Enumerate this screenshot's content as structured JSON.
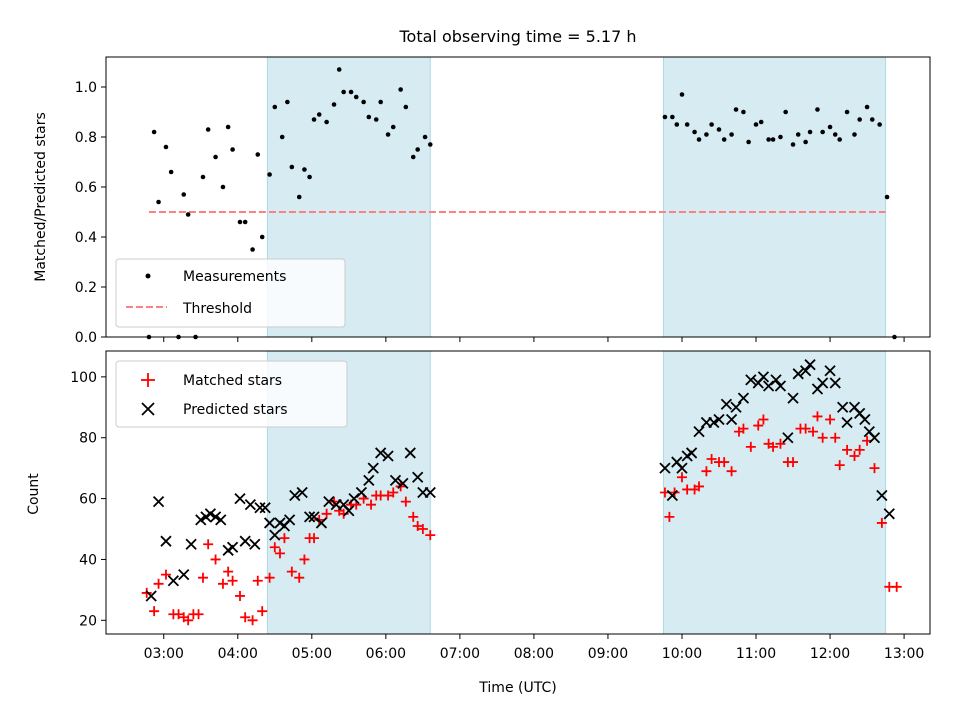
{
  "figure": {
    "title": "Total observing time = 5.17 h",
    "xlabel": "Time (UTC)",
    "xticks": [
      {
        "h": 3,
        "label": "03:00"
      },
      {
        "h": 4,
        "label": "04:00"
      },
      {
        "h": 5,
        "label": "05:00"
      },
      {
        "h": 6,
        "label": "06:00"
      },
      {
        "h": 7,
        "label": "07:00"
      },
      {
        "h": 8,
        "label": "08:00"
      },
      {
        "h": 9,
        "label": "09:00"
      },
      {
        "h": 10,
        "label": "10:00"
      },
      {
        "h": 11,
        "label": "11:00"
      },
      {
        "h": 12,
        "label": "12:00"
      },
      {
        "h": 13,
        "label": "13:00"
      }
    ],
    "xlim": [
      2.22,
      13.35
    ],
    "shaded_intervals": [
      [
        4.4,
        6.6
      ],
      [
        9.75,
        12.75
      ]
    ],
    "shade_color": "#add8e6"
  },
  "chart_data": [
    {
      "type": "scatter",
      "ylabel": "Matched/Predicted stars",
      "ylim": [
        0,
        1.12
      ],
      "yticks": [
        {
          "v": 0.0,
          "label": "0.0"
        },
        {
          "v": 0.2,
          "label": "0.2"
        },
        {
          "v": 0.4,
          "label": "0.4"
        },
        {
          "v": 0.6,
          "label": "0.6"
        },
        {
          "v": 0.8,
          "label": "0.8"
        },
        {
          "v": 1.0,
          "label": "1.0"
        }
      ],
      "legend_position": "lower-left",
      "threshold": {
        "name": "Threshold",
        "value": 0.5,
        "x_range": [
          2.8,
          12.75
        ],
        "color": "#ff8080"
      },
      "series": [
        {
          "name": "Measurements",
          "color": "#000000",
          "points": [
            [
              2.8,
              0.0
            ],
            [
              2.87,
              0.82
            ],
            [
              2.93,
              0.54
            ],
            [
              3.03,
              0.76
            ],
            [
              3.1,
              0.66
            ],
            [
              3.2,
              0.0
            ],
            [
              3.27,
              0.57
            ],
            [
              3.33,
              0.49
            ],
            [
              3.43,
              0.0
            ],
            [
              3.53,
              0.64
            ],
            [
              3.6,
              0.83
            ],
            [
              3.7,
              0.72
            ],
            [
              3.8,
              0.6
            ],
            [
              3.87,
              0.84
            ],
            [
              3.93,
              0.75
            ],
            [
              4.03,
              0.46
            ],
            [
              4.1,
              0.46
            ],
            [
              4.2,
              0.35
            ],
            [
              4.27,
              0.73
            ],
            [
              4.33,
              0.4
            ],
            [
              4.43,
              0.65
            ],
            [
              4.5,
              0.92
            ],
            [
              4.6,
              0.8
            ],
            [
              4.67,
              0.94
            ],
            [
              4.73,
              0.68
            ],
            [
              4.83,
              0.56
            ],
            [
              4.9,
              0.67
            ],
            [
              4.97,
              0.64
            ],
            [
              5.03,
              0.87
            ],
            [
              5.1,
              0.89
            ],
            [
              5.2,
              0.86
            ],
            [
              5.3,
              0.93
            ],
            [
              5.37,
              1.07
            ],
            [
              5.43,
              0.98
            ],
            [
              5.53,
              0.98
            ],
            [
              5.6,
              0.96
            ],
            [
              5.7,
              0.94
            ],
            [
              5.77,
              0.88
            ],
            [
              5.87,
              0.87
            ],
            [
              5.93,
              0.94
            ],
            [
              6.03,
              0.81
            ],
            [
              6.1,
              0.84
            ],
            [
              6.2,
              0.99
            ],
            [
              6.27,
              0.92
            ],
            [
              6.37,
              0.72
            ],
            [
              6.43,
              0.75
            ],
            [
              6.53,
              0.8
            ],
            [
              6.6,
              0.77
            ],
            [
              9.77,
              0.88
            ],
            [
              9.87,
              0.88
            ],
            [
              9.93,
              0.85
            ],
            [
              10.0,
              0.97
            ],
            [
              10.07,
              0.85
            ],
            [
              10.17,
              0.82
            ],
            [
              10.23,
              0.79
            ],
            [
              10.33,
              0.81
            ],
            [
              10.4,
              0.85
            ],
            [
              10.5,
              0.83
            ],
            [
              10.57,
              0.79
            ],
            [
              10.67,
              0.81
            ],
            [
              10.73,
              0.91
            ],
            [
              10.83,
              0.9
            ],
            [
              10.9,
              0.78
            ],
            [
              11.0,
              0.85
            ],
            [
              11.07,
              0.86
            ],
            [
              11.17,
              0.79
            ],
            [
              11.23,
              0.79
            ],
            [
              11.33,
              0.8
            ],
            [
              11.4,
              0.9
            ],
            [
              11.5,
              0.77
            ],
            [
              11.57,
              0.81
            ],
            [
              11.67,
              0.78
            ],
            [
              11.73,
              0.82
            ],
            [
              11.83,
              0.91
            ],
            [
              11.9,
              0.82
            ],
            [
              12.0,
              0.84
            ],
            [
              12.07,
              0.81
            ],
            [
              12.13,
              0.79
            ],
            [
              12.23,
              0.9
            ],
            [
              12.33,
              0.81
            ],
            [
              12.4,
              0.87
            ],
            [
              12.5,
              0.92
            ],
            [
              12.57,
              0.87
            ],
            [
              12.67,
              0.85
            ],
            [
              12.77,
              0.56
            ],
            [
              12.87,
              0.0
            ]
          ]
        }
      ]
    },
    {
      "type": "scatter",
      "ylabel": "Count",
      "ylim": [
        15.5,
        108.5
      ],
      "yticks": [
        {
          "v": 20,
          "label": "20"
        },
        {
          "v": 40,
          "label": "40"
        },
        {
          "v": 60,
          "label": "60"
        },
        {
          "v": 80,
          "label": "80"
        },
        {
          "v": 100,
          "label": "100"
        }
      ],
      "legend_position": "upper-left",
      "series": [
        {
          "name": "Matched stars",
          "marker": "plus",
          "color": "#ff0000",
          "points": [
            [
              2.77,
              29
            ],
            [
              2.87,
              23
            ],
            [
              2.93,
              32
            ],
            [
              3.03,
              35
            ],
            [
              3.13,
              22
            ],
            [
              3.2,
              22
            ],
            [
              3.27,
              21
            ],
            [
              3.33,
              20
            ],
            [
              3.4,
              22
            ],
            [
              3.47,
              22
            ],
            [
              3.53,
              34
            ],
            [
              3.6,
              45
            ],
            [
              3.7,
              40
            ],
            [
              3.8,
              32
            ],
            [
              3.87,
              36
            ],
            [
              3.93,
              33
            ],
            [
              4.03,
              28
            ],
            [
              4.1,
              21
            ],
            [
              4.2,
              20
            ],
            [
              4.27,
              33
            ],
            [
              4.33,
              23
            ],
            [
              4.43,
              34
            ],
            [
              4.5,
              44
            ],
            [
              4.57,
              42
            ],
            [
              4.63,
              47
            ],
            [
              4.73,
              36
            ],
            [
              4.83,
              34
            ],
            [
              4.9,
              40
            ],
            [
              4.97,
              47
            ],
            [
              5.03,
              47
            ],
            [
              5.1,
              53
            ],
            [
              5.2,
              55
            ],
            [
              5.3,
              59
            ],
            [
              5.37,
              56
            ],
            [
              5.43,
              55
            ],
            [
              5.53,
              58
            ],
            [
              5.6,
              58
            ],
            [
              5.7,
              60
            ],
            [
              5.8,
              58
            ],
            [
              5.87,
              61
            ],
            [
              5.93,
              61
            ],
            [
              6.03,
              61
            ],
            [
              6.1,
              62
            ],
            [
              6.2,
              64
            ],
            [
              6.27,
              59
            ],
            [
              6.37,
              54
            ],
            [
              6.43,
              51
            ],
            [
              6.5,
              50
            ],
            [
              6.6,
              48
            ],
            [
              9.77,
              62
            ],
            [
              9.83,
              54
            ],
            [
              9.9,
              62
            ],
            [
              10.0,
              67
            ],
            [
              10.07,
              63
            ],
            [
              10.17,
              63
            ],
            [
              10.23,
              64
            ],
            [
              10.33,
              69
            ],
            [
              10.4,
              73
            ],
            [
              10.5,
              72
            ],
            [
              10.57,
              72
            ],
            [
              10.67,
              69
            ],
            [
              10.77,
              82
            ],
            [
              10.83,
              83
            ],
            [
              10.93,
              77
            ],
            [
              11.03,
              84
            ],
            [
              11.1,
              86
            ],
            [
              11.17,
              78
            ],
            [
              11.23,
              77
            ],
            [
              11.33,
              78
            ],
            [
              11.43,
              72
            ],
            [
              11.5,
              72
            ],
            [
              11.6,
              83
            ],
            [
              11.67,
              83
            ],
            [
              11.77,
              82
            ],
            [
              11.83,
              87
            ],
            [
              11.9,
              80
            ],
            [
              12.0,
              86
            ],
            [
              12.07,
              80
            ],
            [
              12.13,
              71
            ],
            [
              12.23,
              76
            ],
            [
              12.33,
              74
            ],
            [
              12.4,
              76
            ],
            [
              12.5,
              79
            ],
            [
              12.6,
              70
            ],
            [
              12.7,
              52
            ],
            [
              12.8,
              31
            ],
            [
              12.9,
              31
            ]
          ]
        },
        {
          "name": "Predicted stars",
          "marker": "x",
          "color": "#000000",
          "points": [
            [
              2.83,
              28
            ],
            [
              2.93,
              59
            ],
            [
              3.03,
              46
            ],
            [
              3.13,
              33
            ],
            [
              3.27,
              35
            ],
            [
              3.37,
              45
            ],
            [
              3.5,
              53
            ],
            [
              3.57,
              54
            ],
            [
              3.63,
              55
            ],
            [
              3.7,
              54
            ],
            [
              3.77,
              53
            ],
            [
              3.87,
              43
            ],
            [
              3.93,
              44
            ],
            [
              4.03,
              60
            ],
            [
              4.1,
              46
            ],
            [
              4.17,
              58
            ],
            [
              4.23,
              45
            ],
            [
              4.3,
              57
            ],
            [
              4.37,
              57
            ],
            [
              4.43,
              52
            ],
            [
              4.5,
              48
            ],
            [
              4.57,
              52
            ],
            [
              4.63,
              51
            ],
            [
              4.7,
              53
            ],
            [
              4.77,
              61
            ],
            [
              4.87,
              62
            ],
            [
              4.97,
              54
            ],
            [
              5.03,
              54
            ],
            [
              5.13,
              52
            ],
            [
              5.23,
              59
            ],
            [
              5.33,
              58
            ],
            [
              5.43,
              58
            ],
            [
              5.5,
              56
            ],
            [
              5.57,
              60
            ],
            [
              5.67,
              62
            ],
            [
              5.77,
              66
            ],
            [
              5.83,
              70
            ],
            [
              5.93,
              75
            ],
            [
              6.03,
              74
            ],
            [
              6.13,
              66
            ],
            [
              6.23,
              65
            ],
            [
              6.33,
              75
            ],
            [
              6.43,
              67
            ],
            [
              6.5,
              62
            ],
            [
              6.6,
              62
            ],
            [
              9.77,
              70
            ],
            [
              9.87,
              61
            ],
            [
              9.93,
              72
            ],
            [
              10.0,
              70
            ],
            [
              10.07,
              74
            ],
            [
              10.13,
              75
            ],
            [
              10.23,
              82
            ],
            [
              10.33,
              85
            ],
            [
              10.43,
              85
            ],
            [
              10.5,
              86
            ],
            [
              10.6,
              91
            ],
            [
              10.67,
              86
            ],
            [
              10.73,
              90
            ],
            [
              10.83,
              93
            ],
            [
              10.93,
              99
            ],
            [
              11.03,
              98
            ],
            [
              11.1,
              100
            ],
            [
              11.17,
              97
            ],
            [
              11.27,
              99
            ],
            [
              11.33,
              97
            ],
            [
              11.43,
              80
            ],
            [
              11.5,
              93
            ],
            [
              11.57,
              101
            ],
            [
              11.67,
              102
            ],
            [
              11.73,
              104
            ],
            [
              11.83,
              96
            ],
            [
              11.9,
              98
            ],
            [
              12.0,
              102
            ],
            [
              12.07,
              98
            ],
            [
              12.17,
              90
            ],
            [
              12.23,
              85
            ],
            [
              12.33,
              90
            ],
            [
              12.4,
              88
            ],
            [
              12.47,
              86
            ],
            [
              12.53,
              82
            ],
            [
              12.6,
              80
            ],
            [
              12.7,
              61
            ],
            [
              12.8,
              55
            ]
          ]
        }
      ]
    }
  ]
}
